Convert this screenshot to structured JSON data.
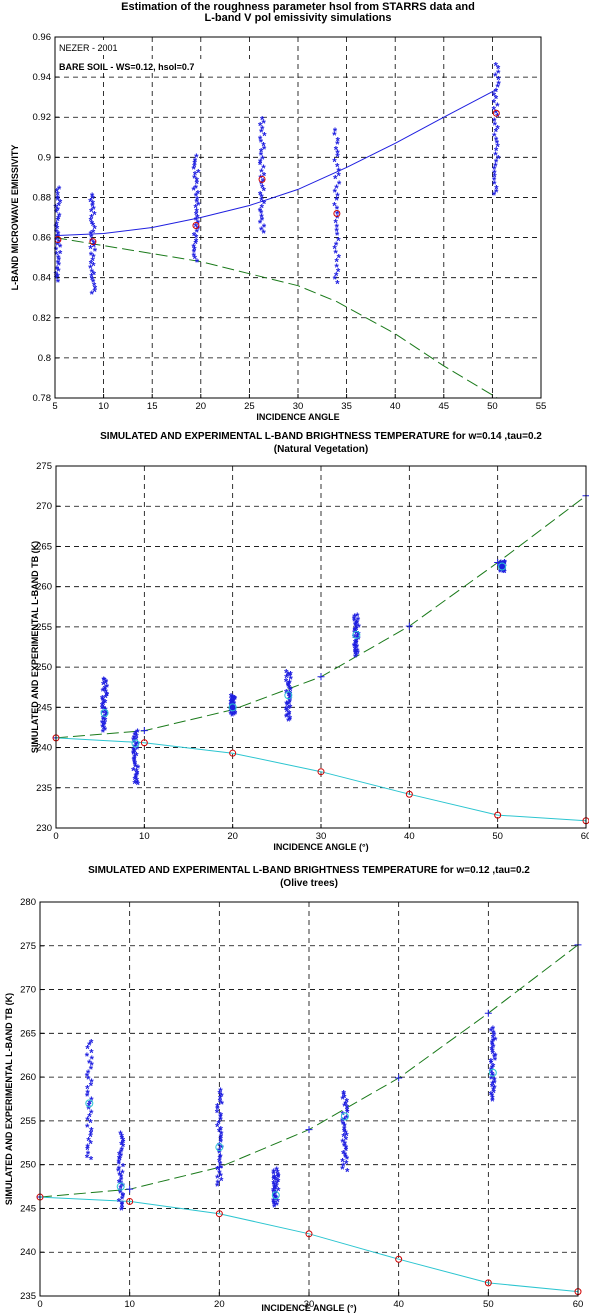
{
  "colors": {
    "blue": "#1f1fe0",
    "green": "#1a7a1a",
    "cyan": "#2cc5d0",
    "red": "#d00000",
    "grid": "#000000"
  },
  "chart_data": [
    {
      "type": "scatter",
      "title": "Estimation of the roughness parameter hsol from STARRS data and",
      "subtitle": "L-band V pol emissivity simulations",
      "xlabel": "INCIDENCE ANGLE",
      "ylabel": "L-BAND MICROWAVE EMISSIVITY",
      "xlim": [
        5,
        55
      ],
      "ylim": [
        0.78,
        0.96
      ],
      "xticks": [
        5,
        10,
        15,
        20,
        25,
        30,
        35,
        40,
        45,
        50,
        55
      ],
      "yticks": [
        0.78,
        0.8,
        0.82,
        0.84,
        0.86,
        0.88,
        0.9,
        0.92,
        0.94,
        0.96
      ],
      "grid": "on",
      "annotations": [
        "NEZER - 2001",
        "BARE SOIL - WS=0.12, hsol=0.7"
      ],
      "series": [
        {
          "marker": "line",
          "color": "blue",
          "x": [
            5,
            10,
            15,
            20,
            25,
            30,
            35,
            40,
            45,
            50.5
          ],
          "y": [
            0.861,
            0.862,
            0.865,
            0.87,
            0.876,
            0.884,
            0.895,
            0.907,
            0.92,
            0.934
          ]
        },
        {
          "marker": "dashed",
          "color": "green",
          "x": [
            5,
            10,
            15,
            20,
            25,
            30,
            34,
            40,
            45,
            50.5
          ],
          "y": [
            0.86,
            0.856,
            0.852,
            0.848,
            0.842,
            0.836,
            0.828,
            0.812,
            0.796,
            0.78
          ]
        },
        {
          "marker": "stars",
          "color": "blue",
          "x": [
            5.3,
            8.9,
            19.5,
            26.3,
            34,
            50.4
          ],
          "ymin": [
            0.838,
            0.832,
            0.848,
            0.862,
            0.837,
            0.881
          ],
          "ymax": [
            0.884,
            0.881,
            0.9,
            0.919,
            0.913,
            0.946
          ]
        },
        {
          "marker": "circle",
          "color": "red",
          "x": [
            5.3,
            8.9,
            19.5,
            26.3,
            34,
            50.4
          ],
          "y": [
            0.859,
            0.858,
            0.866,
            0.889,
            0.872,
            0.922
          ]
        }
      ]
    },
    {
      "type": "scatter",
      "title": "SIMULATED AND EXPERIMENTAL L-BAND BRIGHTNESS TEMPERATURE for w=0.14 ,tau=0.2",
      "subtitle": "(Natural Vegetation)",
      "xlabel": "INCIDENCE ANGLE (°)",
      "ylabel": "SIMULATED AND EXPERIMENTAL L-BAND TB (K)",
      "xlim": [
        0,
        60
      ],
      "ylim": [
        230,
        275
      ],
      "xticks": [
        0,
        10,
        20,
        30,
        40,
        50,
        60
      ],
      "yticks": [
        230,
        235,
        240,
        245,
        250,
        255,
        260,
        265,
        270,
        275
      ],
      "grid": "on",
      "series": [
        {
          "marker": "dashed-plus",
          "color": "green",
          "x": [
            0,
            10,
            20,
            30,
            40,
            50,
            60
          ],
          "y": [
            241.2,
            242.1,
            244.7,
            248.8,
            255.1,
            263.0,
            271.3
          ]
        },
        {
          "marker": "line-circle",
          "color": "cyan",
          "x": [
            0,
            10,
            20,
            30,
            40,
            50,
            60
          ],
          "y": [
            241.2,
            240.6,
            239.3,
            237.0,
            234.2,
            231.6,
            230.9
          ]
        },
        {
          "marker": "stars",
          "color": "blue",
          "x": [
            5.5,
            9,
            20,
            26.3,
            34,
            50.5
          ],
          "ymin": [
            242,
            235.3,
            244,
            243.3,
            251.3,
            261.8
          ],
          "ymax": [
            248.5,
            242,
            246.3,
            249.3,
            256.3,
            263
          ]
        },
        {
          "marker": "circle-open",
          "color": "cyan",
          "x": [
            5.5,
            9,
            20,
            26.3,
            34,
            50.5
          ],
          "y": [
            244.3,
            240.5,
            245,
            246.5,
            254,
            262.5
          ]
        }
      ]
    },
    {
      "type": "scatter",
      "title": "SIMULATED AND EXPERIMENTAL L-BAND BRIGHTNESS TEMPERATURE for w=0.12 ,tau=0.2",
      "subtitle": "(Olive trees)",
      "xlabel": "INCIDENCE ANGLE (°)",
      "ylabel": "SIMULATED AND EXPERIMENTAL L-BAND TB (K)",
      "xlim": [
        0,
        60
      ],
      "ylim": [
        235,
        280
      ],
      "xticks": [
        0,
        10,
        20,
        30,
        40,
        50,
        60
      ],
      "yticks": [
        235,
        240,
        245,
        250,
        255,
        260,
        265,
        270,
        275,
        280
      ],
      "grid": "on",
      "series": [
        {
          "marker": "dashed-plus",
          "color": "green",
          "x": [
            0,
            10,
            20,
            30,
            40,
            50,
            60
          ],
          "y": [
            246.3,
            247.2,
            249.7,
            254.0,
            259.9,
            267.3,
            275.1
          ]
        },
        {
          "marker": "line-circle",
          "color": "cyan",
          "x": [
            0,
            10,
            20,
            30,
            40,
            50,
            60
          ],
          "y": [
            246.3,
            245.8,
            244.4,
            242.1,
            239.2,
            236.5,
            235.5
          ]
        },
        {
          "marker": "stars",
          "color": "blue",
          "x": [
            5.5,
            9,
            20,
            26.3,
            34,
            50.5
          ],
          "ymin": [
            250.5,
            244.8,
            247.5,
            245.2,
            249.3,
            257.3
          ],
          "ymax": [
            264,
            253.5,
            258.5,
            249.3,
            258.2,
            265.5
          ]
        },
        {
          "marker": "circle-open",
          "color": "cyan",
          "x": [
            5.5,
            9,
            20,
            26.3,
            34,
            50.5
          ],
          "y": [
            257,
            247.5,
            252,
            246.5,
            255.5,
            260.5
          ]
        }
      ]
    }
  ]
}
